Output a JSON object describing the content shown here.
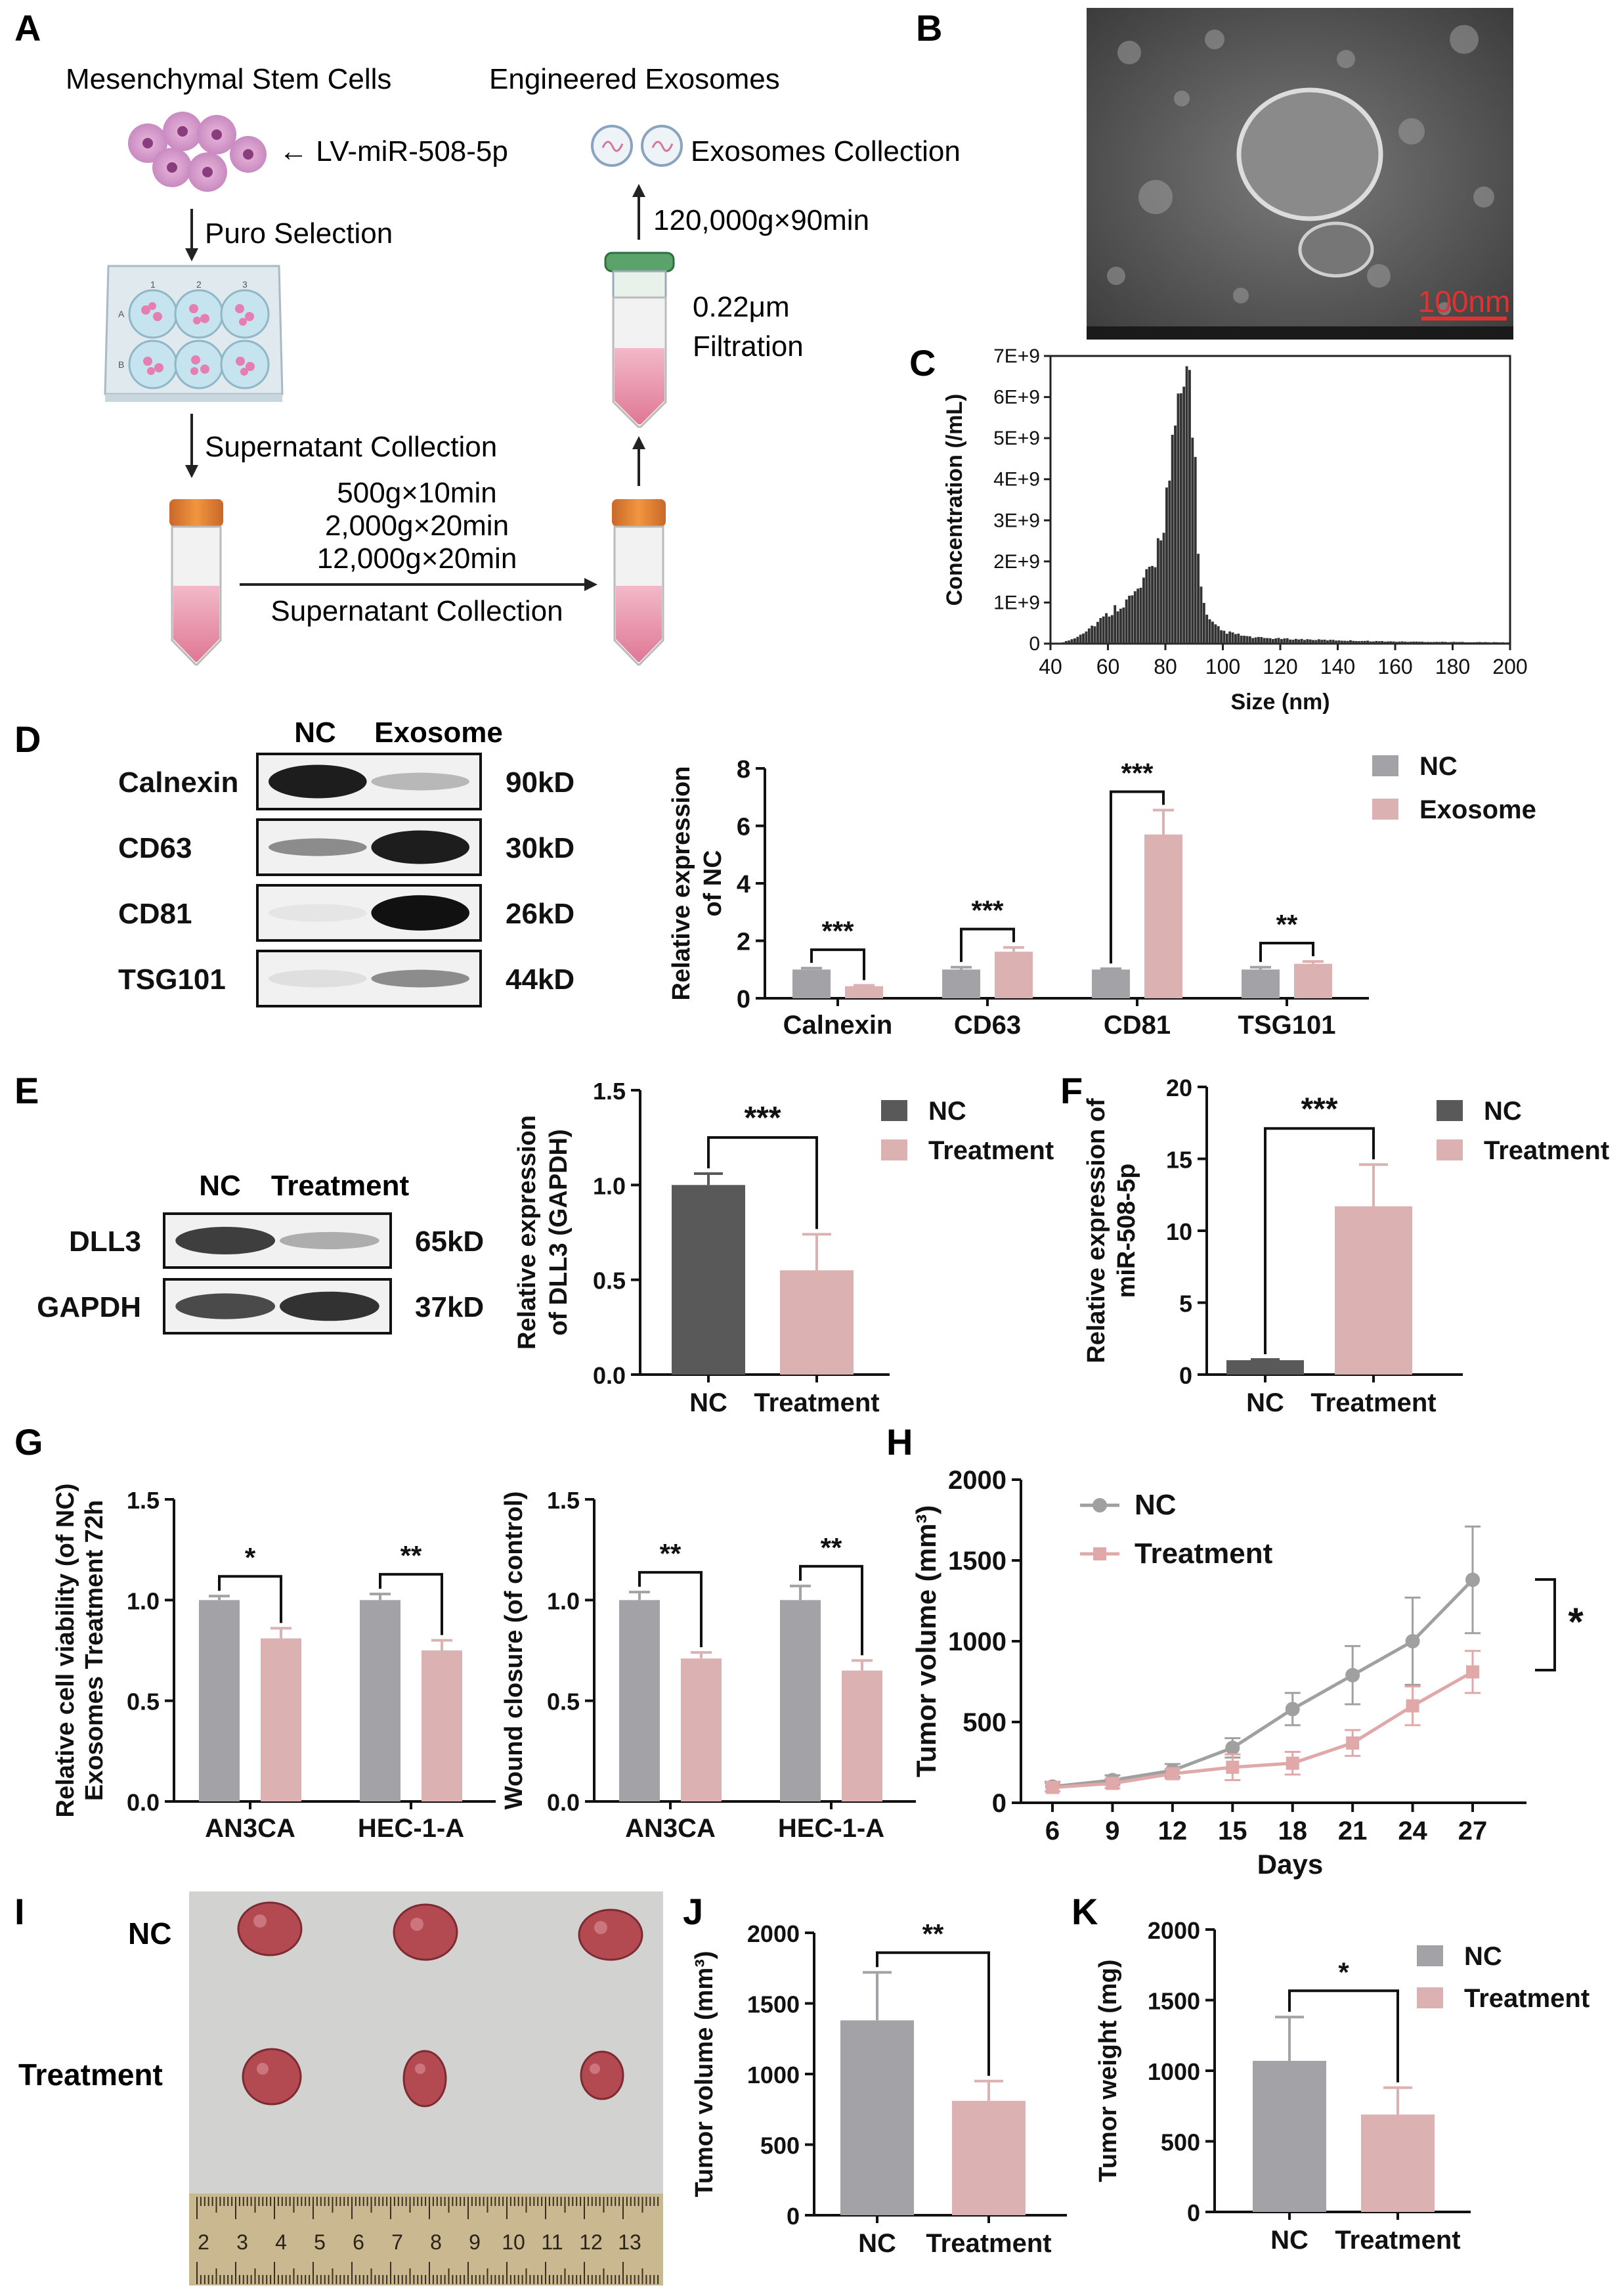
{
  "colors": {
    "nc_gray": "#a3a3a7",
    "nc_dark": "#595959",
    "treat_pink": "#dcb1b1",
    "treat_line": "#e0a8a8",
    "nc_line": "#a0a0a0"
  },
  "panels": {
    "A": {
      "letter": "A",
      "title_left": "Mesenchymal Stem Cells",
      "title_right": "Engineered Exosomes",
      "lv": "← LV-miR-508-5p",
      "puro": "Puro Selection",
      "sup1": "Supernatant Collection",
      "centrifuge": [
        "500g×10min",
        "2,000g×20min",
        "12,000g×20min"
      ],
      "sup2": "Supernatant Collection",
      "filtration": [
        "0.22μm",
        "Filtration"
      ],
      "ultra": "120,000g×90min",
      "exo": "Exosomes Collection",
      "plate_cols": [
        "1",
        "2",
        "3"
      ],
      "plate_rows": [
        "A",
        "B"
      ]
    },
    "B": {
      "letter": "B",
      "scale": "100nm"
    },
    "D": {
      "letter": "D",
      "wb_headers": [
        "NC",
        "Exosome"
      ],
      "wb_rows": [
        {
          "protein": "Calnexin",
          "kd": "90kD"
        },
        {
          "protein": "CD63",
          "kd": "30kD"
        },
        {
          "protein": "CD81",
          "kd": "26kD"
        },
        {
          "protein": "TSG101",
          "kd": "44kD"
        }
      ]
    },
    "E": {
      "letter": "E",
      "wb_headers": [
        "NC",
        "Treatment"
      ],
      "wb_rows": [
        {
          "protein": "DLL3",
          "kd": "65kD"
        },
        {
          "protein": "GAPDH",
          "kd": "37kD"
        }
      ]
    },
    "F": {
      "letter": "F"
    },
    "G": {
      "letter": "G"
    },
    "H": {
      "letter": "H"
    },
    "I": {
      "letter": "I",
      "row_labels": [
        "NC",
        "Treatment"
      ],
      "ruler": [
        "2",
        "3",
        "4",
        "5",
        "6",
        "7",
        "8",
        "9",
        "10",
        "11",
        "12",
        "13"
      ]
    },
    "J": {
      "letter": "J"
    },
    "K": {
      "letter": "K"
    }
  },
  "chart_data": [
    {
      "id": "C",
      "type": "histogram",
      "xlabel": "Size (nm)",
      "ylabel": "Concentration (/mL)",
      "xlim": [
        40,
        200
      ],
      "ylim": [
        0,
        7000000000.0
      ],
      "xticks": [
        "40",
        "60",
        "80",
        "100",
        "120",
        "140",
        "160",
        "180",
        "200"
      ],
      "yticks": [
        "0",
        "1E+9",
        "2E+9",
        "3E+9",
        "4E+9",
        "5E+9",
        "6E+9",
        "7E+9"
      ],
      "profile_x": [
        40,
        44,
        48,
        52,
        56,
        60,
        64,
        68,
        72,
        76,
        78,
        80,
        82,
        84,
        86,
        88,
        89,
        90,
        92,
        94,
        96,
        100,
        110,
        120,
        140,
        160,
        180,
        200
      ],
      "profile_y": [
        0,
        20000000.0,
        120000000.0,
        300000000.0,
        500000000.0,
        700000000.0,
        950000000.0,
        1100000000.0,
        1400000000.0,
        1900000000.0,
        2600000000.0,
        3300000000.0,
        4300000000.0,
        5200000000.0,
        6100000000.0,
        6600000000.0,
        6500000000.0,
        5000000000.0,
        1600000000.0,
        700000000.0,
        500000000.0,
        300000000.0,
        150000000.0,
        120000000.0,
        80000000.0,
        50000000.0,
        40000000.0,
        30000000.0
      ]
    },
    {
      "id": "D",
      "type": "bar",
      "categories": [
        "Calnexin",
        "CD63",
        "CD81",
        "TSG101"
      ],
      "series": [
        {
          "name": "NC",
          "values": [
            1.0,
            1.0,
            1.0,
            1.0
          ],
          "errors": [
            0.05,
            0.08,
            0.03,
            0.08
          ]
        },
        {
          "name": "Exosome",
          "values": [
            0.42,
            1.62,
            5.7,
            1.2
          ],
          "errors": [
            0.03,
            0.15,
            0.85,
            0.08
          ]
        }
      ],
      "ylabel": "Relative expression of NC",
      "ylim": [
        0,
        8
      ],
      "yticks": [
        "0",
        "2",
        "4",
        "6",
        "8"
      ],
      "sig": [
        "***",
        "***",
        "***",
        "**"
      ],
      "legend": [
        "NC",
        "Exosome"
      ]
    },
    {
      "id": "E",
      "type": "bar",
      "categories": [
        "NC",
        "Treatment"
      ],
      "values": [
        1.0,
        0.55
      ],
      "errors": [
        0.06,
        0.19
      ],
      "ylabel": "Relative expression of DLL3 (GAPDH)",
      "ylim": [
        0,
        1.5
      ],
      "yticks": [
        "0.0",
        "0.5",
        "1.0",
        "1.5"
      ],
      "sig": [
        "***"
      ],
      "legend": [
        "NC",
        "Treatment"
      ]
    },
    {
      "id": "F",
      "type": "bar",
      "categories": [
        "NC",
        "Treatment"
      ],
      "values": [
        1.0,
        11.7
      ],
      "errors": [
        0.05,
        2.9
      ],
      "ylabel": "Relative expression of miR-508-5p",
      "ylim": [
        0,
        20
      ],
      "yticks": [
        "0",
        "5",
        "10",
        "15",
        "20"
      ],
      "sig": [
        "***"
      ],
      "legend": [
        "NC",
        "Treatment"
      ]
    },
    {
      "id": "G1",
      "type": "bar",
      "categories": [
        "AN3CA",
        "HEC-1-A"
      ],
      "series": [
        {
          "name": "NC",
          "values": [
            1.0,
            1.0
          ],
          "errors": [
            0.02,
            0.03
          ]
        },
        {
          "name": "Treatment",
          "values": [
            0.81,
            0.75
          ],
          "errors": [
            0.05,
            0.05
          ]
        }
      ],
      "ylabel": "Relative cell viability (of NC) Exosomes Treatment 72h",
      "ylim": [
        0,
        1.5
      ],
      "yticks": [
        "0.0",
        "0.5",
        "1.0",
        "1.5"
      ],
      "sig": [
        "*",
        "**"
      ]
    },
    {
      "id": "G2",
      "type": "bar",
      "categories": [
        "AN3CA",
        "HEC-1-A"
      ],
      "series": [
        {
          "name": "NC",
          "values": [
            1.0,
            1.0
          ],
          "errors": [
            0.04,
            0.07
          ]
        },
        {
          "name": "Treatment",
          "values": [
            0.71,
            0.65
          ],
          "errors": [
            0.03,
            0.05
          ]
        }
      ],
      "ylabel": "Wound closure (of control)",
      "ylim": [
        0,
        1.5
      ],
      "yticks": [
        "0.0",
        "0.5",
        "1.0",
        "1.5"
      ],
      "sig": [
        "**",
        "**"
      ]
    },
    {
      "id": "H",
      "type": "line",
      "x": [
        6,
        9,
        12,
        15,
        18,
        21,
        24,
        27
      ],
      "series": [
        {
          "name": "NC",
          "values": [
            100,
            140,
            200,
            340,
            580,
            790,
            1000,
            1380
          ],
          "errors": [
            30,
            30,
            40,
            60,
            100,
            180,
            270,
            330
          ]
        },
        {
          "name": "Treatment",
          "values": [
            95,
            120,
            180,
            220,
            245,
            370,
            600,
            810
          ],
          "errors": [
            25,
            30,
            30,
            80,
            70,
            80,
            120,
            130
          ]
        }
      ],
      "xlabel": "Days",
      "ylabel": "Tumor volume (mm³)",
      "ylim": [
        0,
        2000
      ],
      "yticks": [
        "0",
        "500",
        "1000",
        "1500",
        "2000"
      ],
      "sig": [
        "*"
      ]
    },
    {
      "id": "J",
      "type": "bar",
      "categories": [
        "NC",
        "Treatment"
      ],
      "values": [
        1380,
        810
      ],
      "errors": [
        340,
        140
      ],
      "ylabel": "Tumor volume (mm³)",
      "ylim": [
        0,
        2000
      ],
      "yticks": [
        "0",
        "500",
        "1000",
        "1500",
        "2000"
      ],
      "sig": [
        "**"
      ]
    },
    {
      "id": "K",
      "type": "bar",
      "categories": [
        "NC",
        "Treatment"
      ],
      "values": [
        1070,
        690
      ],
      "errors": [
        310,
        190
      ],
      "ylabel": "Tumor weight (mg)",
      "ylim": [
        0,
        2000
      ],
      "yticks": [
        "0",
        "500",
        "1000",
        "1500",
        "2000"
      ],
      "sig": [
        "*"
      ],
      "legend": [
        "NC",
        "Treatment"
      ]
    }
  ]
}
